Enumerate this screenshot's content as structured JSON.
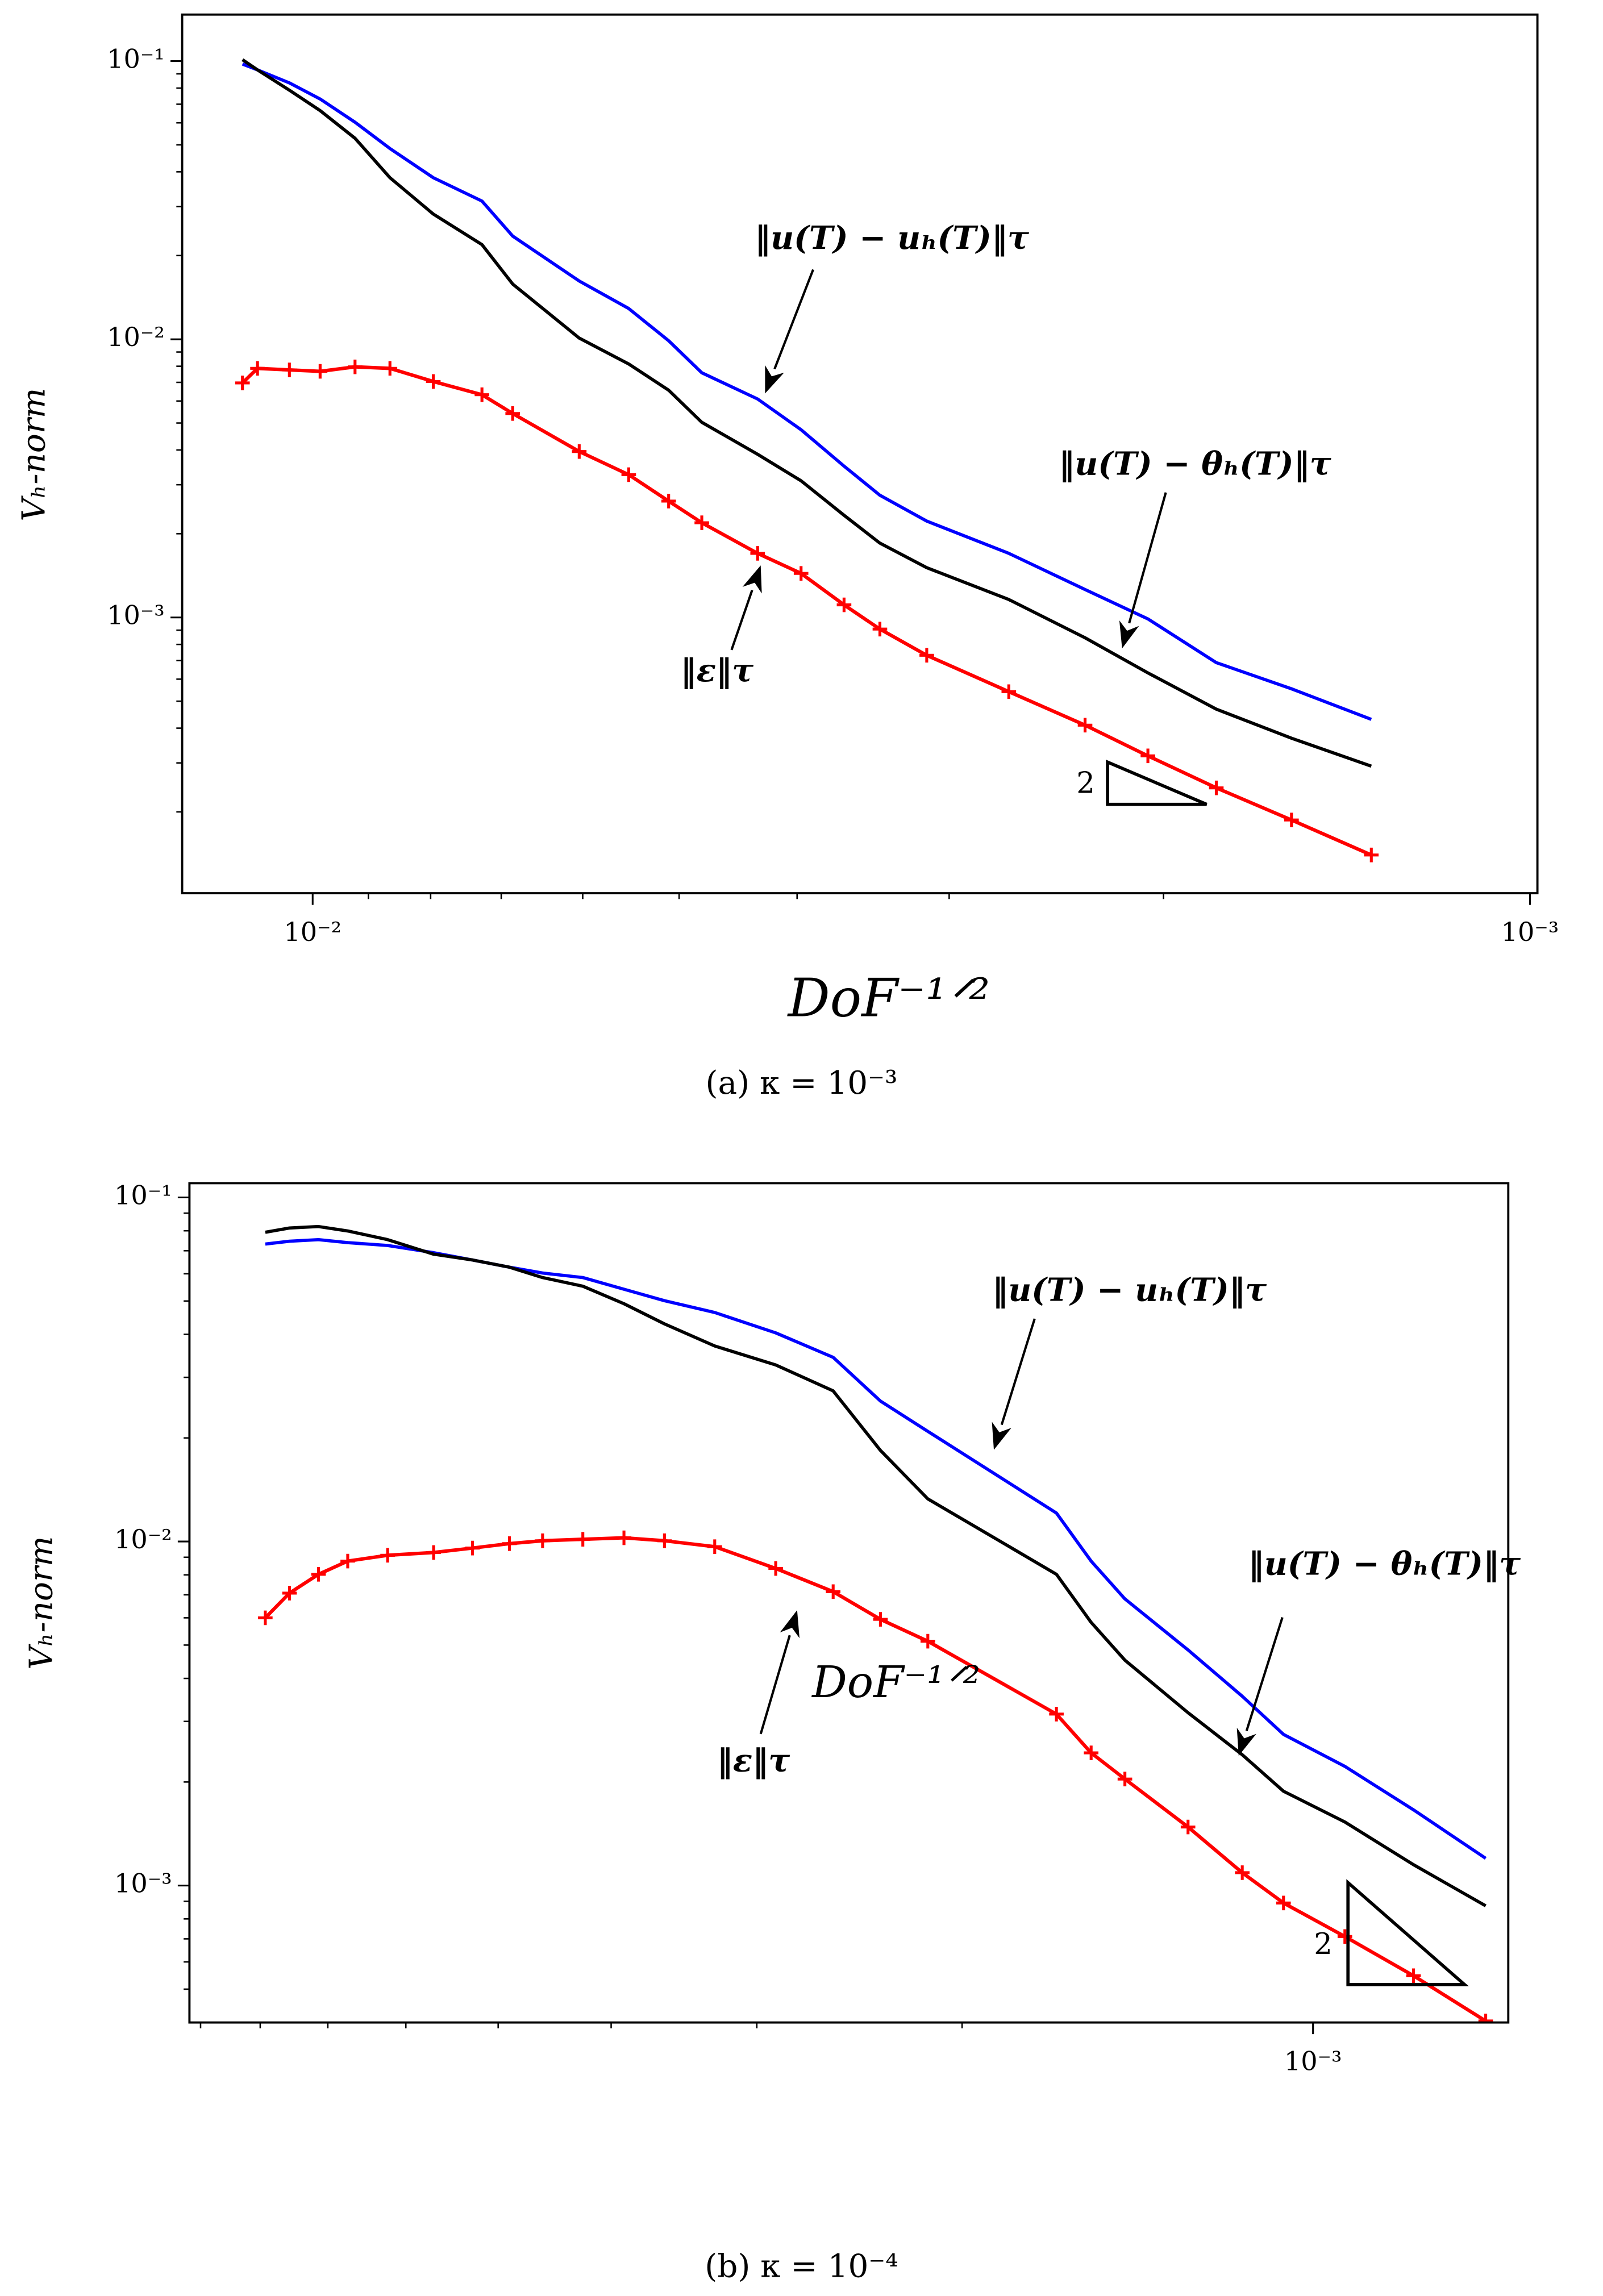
{
  "chart_data": [
    {
      "type": "line",
      "xscale": "log",
      "yscale": "log",
      "ylabel": "Vₕ-norm",
      "xlabel": "DoF⁻¹ᐟ²",
      "caption": "(a) κ = 10⁻³",
      "xlim": [
        0.0128,
        0.000986
      ],
      "ylim": [
        0.000102,
        0.147
      ],
      "xticks": [
        {
          "value": 0.01,
          "label": "10⁻²"
        },
        {
          "value": 0.001,
          "label": "10⁻³"
        }
      ],
      "xminorticks": [
        0.002,
        0.003,
        0.004,
        0.005,
        0.006,
        0.007,
        0.008,
        0.009
      ],
      "yticks": [
        {
          "value": 0.1,
          "label": "10⁻¹"
        },
        {
          "value": 0.01,
          "label": "10⁻²"
        },
        {
          "value": 0.001,
          "label": "10⁻³"
        }
      ],
      "yminorticks": [
        0.0002,
        0.0003,
        0.0004,
        0.0005,
        0.0006,
        0.0007,
        0.0008,
        0.0009,
        0.002,
        0.003,
        0.004,
        0.005,
        0.006,
        0.007,
        0.008,
        0.009,
        0.02,
        0.03,
        0.04,
        0.05,
        0.06,
        0.07,
        0.08,
        0.09
      ],
      "x": [
        0.01142,
        0.0111,
        0.01045,
        0.00986,
        0.00923,
        0.00864,
        0.00796,
        0.00726,
        0.00685,
        0.00604,
        0.0055,
        0.0051,
        0.00479,
        0.00431,
        0.00397,
        0.00366,
        0.00342,
        0.00313,
        0.00268,
        0.00232,
        0.00206,
        0.00181,
        0.00157,
        0.00135
      ],
      "series": [
        {
          "color": "#0000ff",
          "values": [
            0.0976,
            0.093,
            0.0835,
            0.0731,
            0.0603,
            0.0485,
            0.0381,
            0.0314,
            0.0235,
            0.0162,
            0.0129,
            0.00988,
            0.00758,
            0.0061,
            0.00473,
            0.0035,
            0.00275,
            0.00222,
            0.0017,
            0.00126,
            0.000988,
            0.000688,
            0.000554,
            0.00043
          ]
        },
        {
          "color": "#000000",
          "values": [
            0.1012,
            0.093,
            0.0786,
            0.0664,
            0.0528,
            0.0381,
            0.0282,
            0.0219,
            0.0158,
            0.0101,
            0.00815,
            0.00656,
            0.00503,
            0.00386,
            0.0031,
            0.00233,
            0.00185,
            0.00151,
            0.00116,
            0.000845,
            0.000632,
            0.000468,
            0.000368,
            0.000292
          ]
        },
        {
          "color": "#ff0000",
          "marker": "+",
          "values": [
            0.00697,
            0.00786,
            0.00776,
            0.00767,
            0.00796,
            0.00786,
            0.00705,
            0.00632,
            0.00541,
            0.00395,
            0.00326,
            0.00262,
            0.00219,
            0.0017,
            0.00144,
            0.00111,
            0.000908,
            0.000731,
            0.000541,
            0.00041,
            0.000318,
            0.000244,
            0.000187,
            0.00014
          ]
        }
      ],
      "annotations": [
        "‖u(T) − uₕ(T)‖τ",
        "‖u(T) − θₕ(T)‖τ",
        "‖ε‖τ",
        "2"
      ]
    },
    {
      "type": "line",
      "xscale": "log",
      "yscale": "log",
      "ylabel": "Vₕ-norm",
      "xlabel": "DoF⁻¹ᐟ²",
      "caption": "(b) κ = 10⁻⁴",
      "xlim": [
        0.0092,
        0.00068
      ],
      "ylim": [
        0.0004,
        0.11
      ],
      "xticks": [
        {
          "value": 0.001,
          "label": "10⁻³"
        }
      ],
      "xminorticks": [
        0.002,
        0.003,
        0.004,
        0.005,
        0.006,
        0.007,
        0.008,
        0.009
      ],
      "yticks": [
        {
          "value": 0.1,
          "label": "10⁻¹"
        },
        {
          "value": 0.01,
          "label": "10⁻²"
        },
        {
          "value": 0.001,
          "label": "10⁻³"
        }
      ],
      "yminorticks": [
        0.0005,
        0.0006,
        0.0007,
        0.0008,
        0.0009,
        0.002,
        0.003,
        0.004,
        0.005,
        0.006,
        0.007,
        0.008,
        0.009,
        0.02,
        0.03,
        0.04,
        0.05,
        0.06,
        0.07,
        0.08,
        0.09
      ],
      "x": [
        0.00792,
        0.00755,
        0.00713,
        0.00673,
        0.00622,
        0.00568,
        0.00526,
        0.00489,
        0.00458,
        0.00423,
        0.0039,
        0.0036,
        0.00326,
        0.00289,
        0.00258,
        0.00235,
        0.00214,
        0.00166,
        0.00155,
        0.00145,
        0.00128,
        0.00115,
        0.00106,
        0.000939,
        0.00082,
        0.000711
      ],
      "series": [
        {
          "color": "#0000ff",
          "values": [
            0.0732,
            0.0746,
            0.0754,
            0.0739,
            0.0725,
            0.0691,
            0.0658,
            0.0627,
            0.0603,
            0.0585,
            0.0541,
            0.0501,
            0.0463,
            0.0404,
            0.0343,
            0.0256,
            0.0209,
            0.0121,
            0.00877,
            0.00681,
            0.00484,
            0.00355,
            0.00275,
            0.00222,
            0.00166,
            0.0012
          ]
        },
        {
          "color": "#000000",
          "values": [
            0.0792,
            0.0815,
            0.0823,
            0.0799,
            0.0754,
            0.0684,
            0.0658,
            0.0627,
            0.0585,
            0.0552,
            0.0491,
            0.0429,
            0.037,
            0.0326,
            0.0274,
            0.0184,
            0.0133,
            0.00803,
            0.00582,
            0.00452,
            0.00318,
            0.0024,
            0.00188,
            0.00153,
            0.00115,
            0.000873
          ]
        },
        {
          "color": "#ff0000",
          "marker": "+",
          "values": [
            0.006,
            0.00708,
            0.00803,
            0.00877,
            0.00912,
            0.00929,
            0.00957,
            0.00986,
            0.01005,
            0.01015,
            0.01025,
            0.01005,
            0.00966,
            0.00835,
            0.00715,
            0.00594,
            0.00513,
            0.00315,
            0.00243,
            0.00204,
            0.00148,
            0.00109,
            0.00089,
            0.000711,
            0.000547,
            0.000404
          ]
        }
      ],
      "annotations": [
        "‖u(T) − uₕ(T)‖τ",
        "‖u(T) − θₕ(T)‖τ",
        "‖ε‖τ",
        "2"
      ]
    }
  ]
}
